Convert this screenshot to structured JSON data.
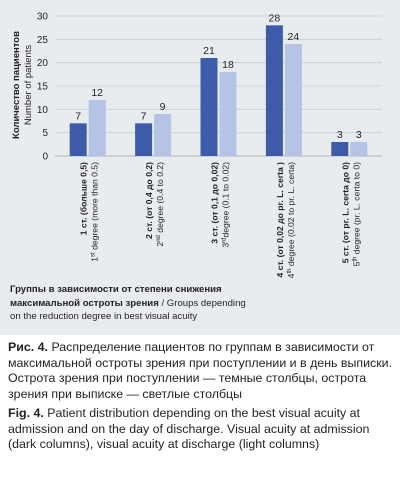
{
  "chart_data": {
    "type": "bar",
    "categories": [
      {
        "ru": "1 ст. (больше 0,5)",
        "en_prefix": "1",
        "en_sup": "st",
        "en_rest": " degree (more than 0.5)"
      },
      {
        "ru": "2 ст. (от 0,4 до 0,2)",
        "en_prefix": "2",
        "en_sup": "nd",
        "en_rest": " degree (0.4 to 0.2)"
      },
      {
        "ru": "3 ст. (от 0,1 до 0,02)",
        "en_prefix": "3",
        "en_sup": "rd",
        "en_rest": "degree (0.1 to 0.02)"
      },
      {
        "ru": "4 ст. (от 0,02 до pr. L. certa )",
        "en_prefix": "4",
        "en_sup": "th",
        "en_rest": " degree (0.02 to pr. L. certa)"
      },
      {
        "ru": "5 ст. (от pr. L. certa до 0)",
        "en_prefix": "5",
        "en_sup": "th",
        "en_rest": " degree (pr. L. certa to 0)"
      }
    ],
    "series": [
      {
        "values": [
          7,
          7,
          21,
          28,
          3
        ],
        "color": "#3d5ba9"
      },
      {
        "values": [
          12,
          9,
          18,
          24,
          3
        ],
        "color": "#b4c3e6"
      }
    ],
    "ylabel_ru": "Количество пациентов",
    "ylabel_en": "Number of patients",
    "ylim": [
      0,
      30
    ],
    "yticks": [
      0,
      5,
      10,
      15,
      20,
      25,
      30
    ],
    "xlabel_ru_bold_1": "Группы в зависимости от степени снижения",
    "xlabel_ru_bold_2": "максимальной остроты зрения",
    "xlabel_en_1": " / Groups depending",
    "xlabel_en_2": "on the reduction degree in best visual acuity",
    "grid": true
  },
  "caption": {
    "ru_label": "Рис. 4.",
    "ru_text": " Распределение пациентов по группам в зависимости от максимальной остроты зрения при поступлении и в день выписки. Острота зрения при поступлении — темные столбцы, острота зрения при выписке — светлые столбцы",
    "en_label": "Fig. 4.",
    "en_text": " Patient distribution depending on the best visual acuity at admission and on the day of discharge. Visual acuity at admission (dark columns), visual acuity at discharge (light columns)"
  }
}
